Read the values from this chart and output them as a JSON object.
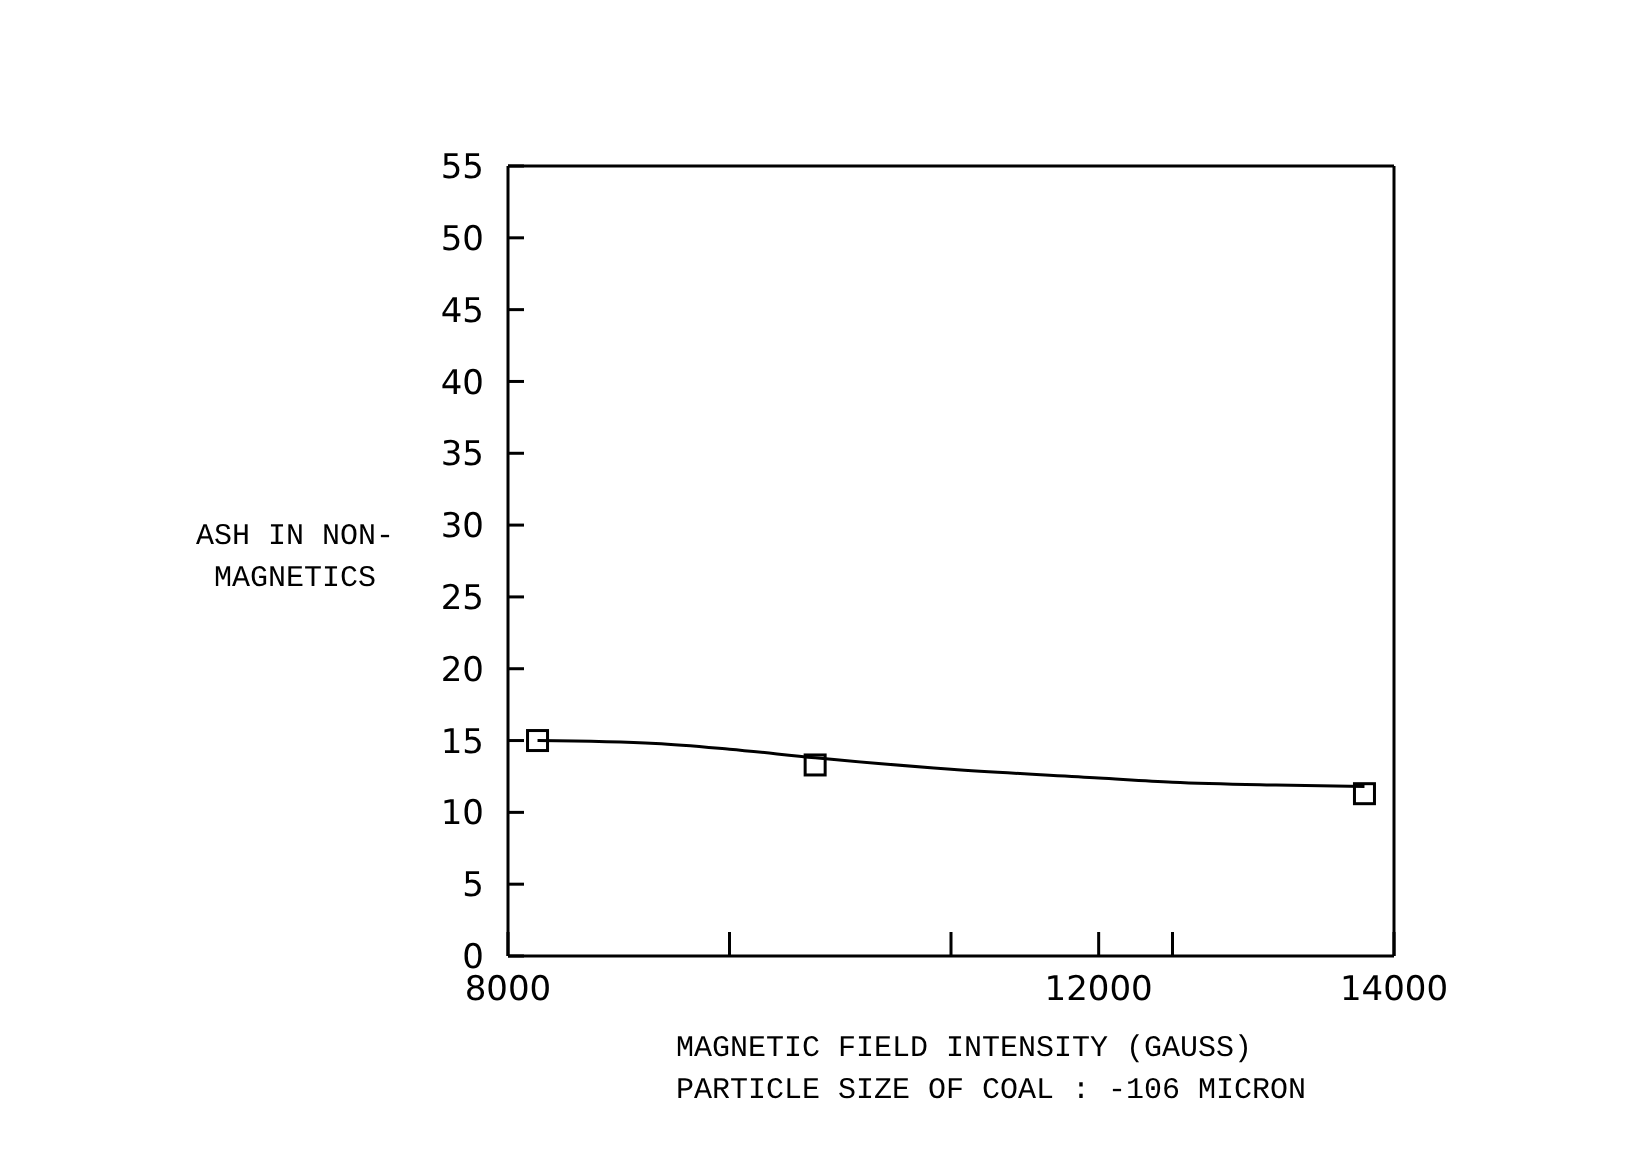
{
  "chart_data": {
    "type": "scatter",
    "xlabel": "MAGNETIC FIELD INTENSITY (GAUSS)",
    "ylabel": "ASH IN NON-\nMAGNETICS",
    "annotations": [
      "PARTICLE SIZE OF COAL : -106 MICRON"
    ],
    "xlim": [
      8000,
      14000
    ],
    "ylim": [
      0,
      55
    ],
    "xticks": [
      8000,
      {
        "value": 9500,
        "label": null
      },
      {
        "value": 11000,
        "label": null
      },
      12000,
      {
        "value": 12500,
        "label": null
      },
      14000
    ],
    "yticks": [
      0,
      5,
      10,
      15,
      20,
      25,
      30,
      35,
      40,
      45,
      50,
      55
    ],
    "series": [
      {
        "color": "#000000",
        "marker": "square",
        "x": [
          8200,
          10080,
          13800
        ],
        "values": [
          15.0,
          13.3,
          11.3
        ]
      },
      {
        "type": "line",
        "color": "#000000",
        "marker": "none",
        "line_style": "solid",
        "x": [
          8200,
          9000,
          9500,
          10080,
          11000,
          12000,
          12500,
          13200,
          13800
        ],
        "values": [
          15.0,
          14.8,
          14.4,
          13.8,
          13.0,
          12.4,
          12.1,
          11.9,
          11.8
        ]
      }
    ]
  }
}
